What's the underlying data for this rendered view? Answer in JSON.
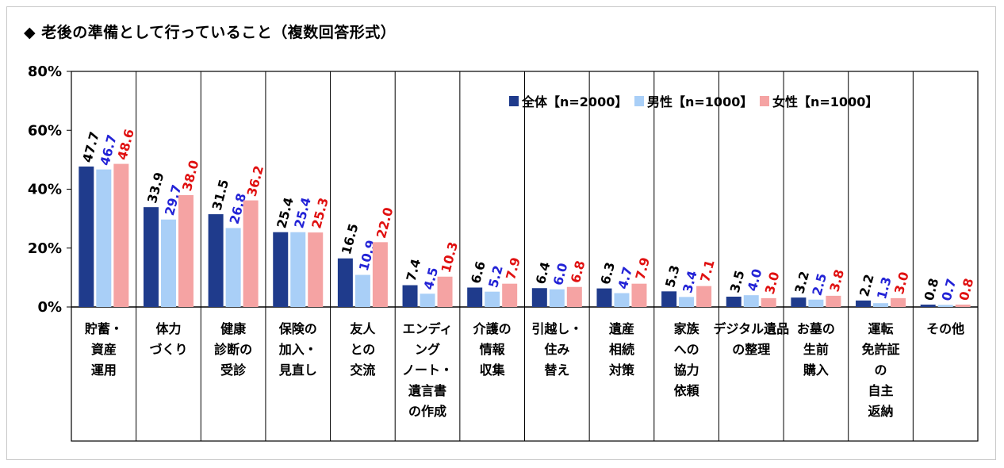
{
  "title": "◆ 老後の準備として行っていること（複数回答形式）",
  "chart_data": {
    "type": "bar",
    "ylim": [
      0,
      80
    ],
    "yticks": [
      "0%",
      "20%",
      "40%",
      "60%",
      "80%"
    ],
    "grid": false,
    "legend_position": "top-right",
    "categories": [
      "貯蓄・\n資産\n運用",
      "体力\nづくり",
      "健康\n診断の\n受診",
      "保険の\n加入・\n見直し",
      "友人\nとの\n交流",
      "エンディ\nング\nノート・\n遺言書\nの作成",
      "介護の\n情報\n収集",
      "引越し・\n住み\n替え",
      "遺産\n相続\n対策",
      "家族\nへの\n協力\n依頼",
      "デジタル遺品\nの整理",
      "お墓の\n生前\n購入",
      "運転\n免許証\nの\n自主\n返納",
      "その他"
    ],
    "series": [
      {
        "name": "全体【n=2000】",
        "color": "#1f3b8c",
        "label_color": "#000000",
        "values": [
          47.7,
          33.9,
          31.5,
          25.4,
          16.5,
          7.4,
          6.6,
          6.4,
          6.3,
          5.3,
          3.5,
          3.2,
          2.2,
          0.8
        ]
      },
      {
        "name": "男性【n=1000】",
        "color": "#a9cff7",
        "label_color": "#2323d6",
        "values": [
          46.7,
          29.7,
          26.8,
          25.4,
          10.9,
          4.5,
          5.2,
          6.0,
          4.7,
          3.4,
          4.0,
          2.5,
          1.3,
          0.7
        ]
      },
      {
        "name": "女性【n=1000】",
        "color": "#f5a3a3",
        "label_color": "#e01010",
        "values": [
          48.6,
          38.0,
          36.2,
          25.3,
          22.0,
          10.3,
          7.9,
          6.8,
          7.9,
          7.1,
          3.0,
          3.8,
          3.0,
          0.8
        ]
      }
    ]
  }
}
